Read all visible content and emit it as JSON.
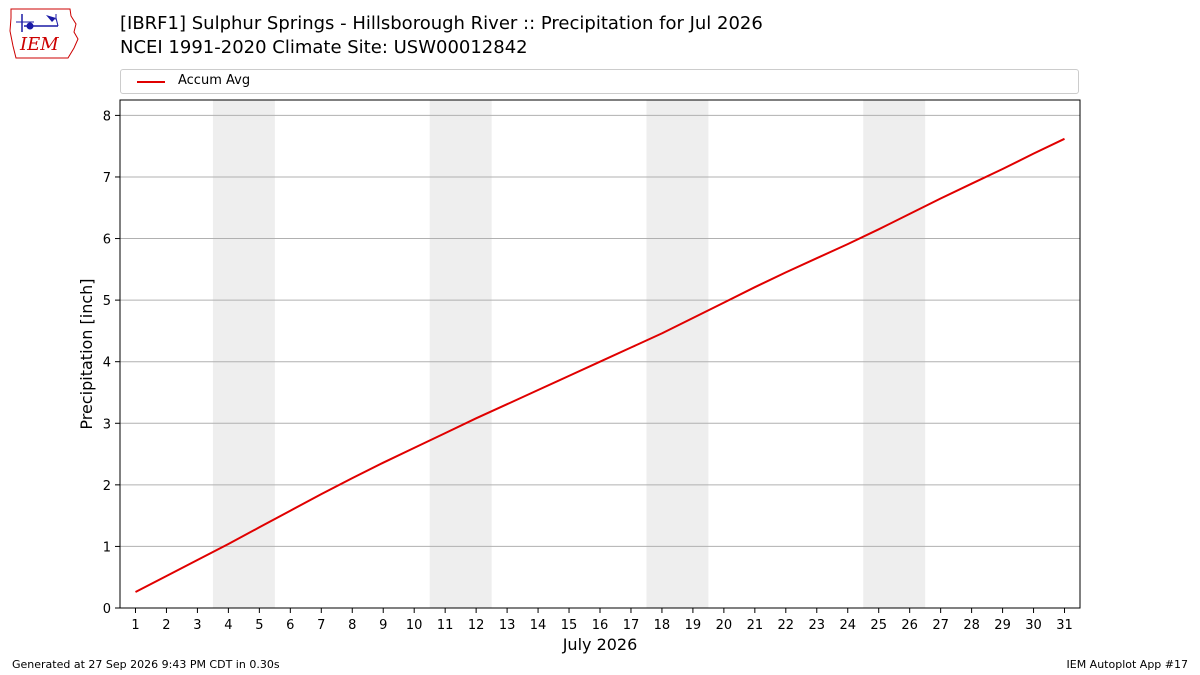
{
  "header": {
    "title_line1": "[IBRF1] Sulphur Springs - Hillsborough River :: Precipitation for Jul 2026",
    "title_line2": "NCEI 1991-2020 Climate Site: USW00012842",
    "logo_text": "IEM"
  },
  "footer": {
    "generated": "Generated at 27 Sep 2026 9:43 PM CDT in 0.30s",
    "app": "IEM Autoplot App #17"
  },
  "colors": {
    "series": "#e00000",
    "weekend_shade": "#eeeeee",
    "grid": "#b0b0b0",
    "logo": "#1a1aa6",
    "logo_text": "#cc0000"
  },
  "chart_data": {
    "type": "line",
    "title": "[IBRF1] Sulphur Springs - Hillsborough River :: Precipitation for Jul 2026",
    "subtitle": "NCEI 1991-2020 Climate Site: USW00012842",
    "xlabel": "July 2026",
    "ylabel": "Precipitation [inch]",
    "xlim": [
      0.5,
      31.5
    ],
    "ylim": [
      0,
      8.25
    ],
    "x_ticks": [
      1,
      2,
      3,
      4,
      5,
      6,
      7,
      8,
      9,
      10,
      11,
      12,
      13,
      14,
      15,
      16,
      17,
      18,
      19,
      20,
      21,
      22,
      23,
      24,
      25,
      26,
      27,
      28,
      29,
      30,
      31
    ],
    "y_ticks": [
      0,
      1,
      2,
      3,
      4,
      5,
      6,
      7,
      8
    ],
    "grid": "y",
    "legend": "top",
    "weekend_shading": [
      [
        4,
        5
      ],
      [
        11,
        12
      ],
      [
        18,
        19
      ],
      [
        25,
        26
      ]
    ],
    "series": [
      {
        "name": "Accum Avg",
        "x": [
          1,
          2,
          3,
          4,
          5,
          6,
          7,
          8,
          9,
          10,
          11,
          12,
          13,
          14,
          15,
          16,
          17,
          18,
          19,
          20,
          21,
          22,
          23,
          24,
          25,
          26,
          27,
          28,
          29,
          30,
          31
        ],
        "values": [
          0.26,
          0.52,
          0.78,
          1.04,
          1.31,
          1.58,
          1.85,
          2.11,
          2.36,
          2.6,
          2.84,
          3.08,
          3.31,
          3.54,
          3.77,
          4.0,
          4.23,
          4.46,
          4.71,
          4.96,
          5.21,
          5.45,
          5.68,
          5.91,
          6.15,
          6.4,
          6.65,
          6.89,
          7.13,
          7.38,
          7.62
        ]
      }
    ]
  }
}
